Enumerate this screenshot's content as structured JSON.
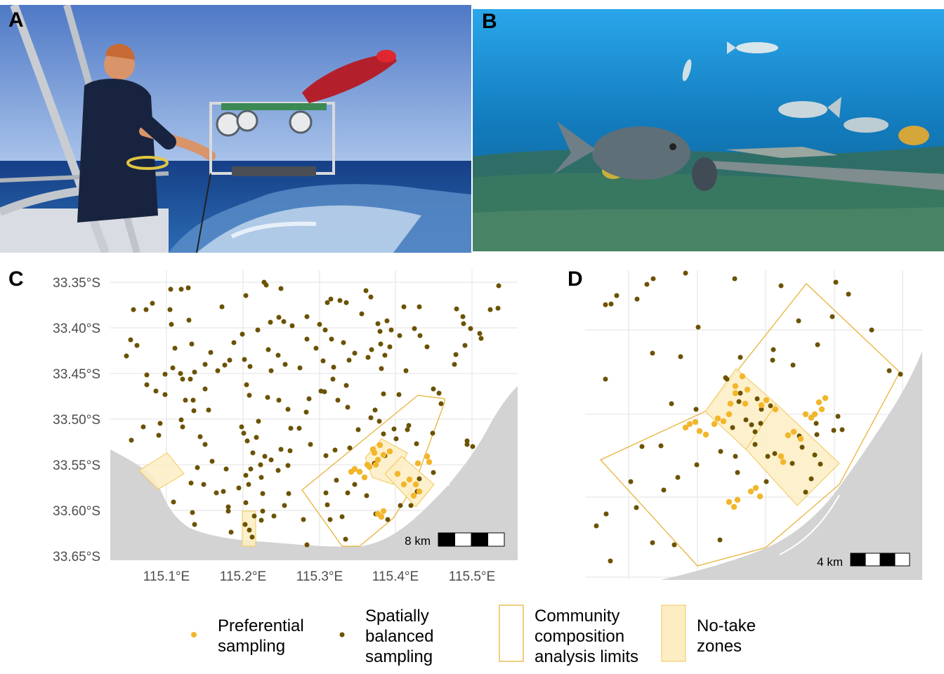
{
  "panels": {
    "a": {
      "letter": "A"
    },
    "b": {
      "letter": "B"
    },
    "c": {
      "letter": "C",
      "lat_ticks": [
        "33.35°S",
        "33.40°S",
        "33.45°S",
        "33.50°S",
        "33.55°S",
        "33.60°S",
        "33.65°S"
      ],
      "lon_ticks": [
        "115.1°E",
        "115.2°E",
        "115.3°E",
        "115.4°E",
        "115.5°E"
      ],
      "scale_label": "8 km"
    },
    "d": {
      "letter": "D",
      "scale_label": "4 km"
    }
  },
  "legend": {
    "preferential": "Preferential\nsampling",
    "balanced": "Spatially\nbalanced\nsampling",
    "community": "Community\ncomposition\nanalysis limits",
    "notake": "No-take\nzones"
  },
  "colors": {
    "preferential": "#f2b62a",
    "balanced": "#6b5200",
    "community_outline": "#e8b33a",
    "notake_fill": "#fdedc3",
    "land": "#d3d3d3",
    "grid": "#ebebeb",
    "sea_photo": "#1f5ea8",
    "sky_photo": "#6f95d4",
    "underwater": "#1678b8"
  }
}
